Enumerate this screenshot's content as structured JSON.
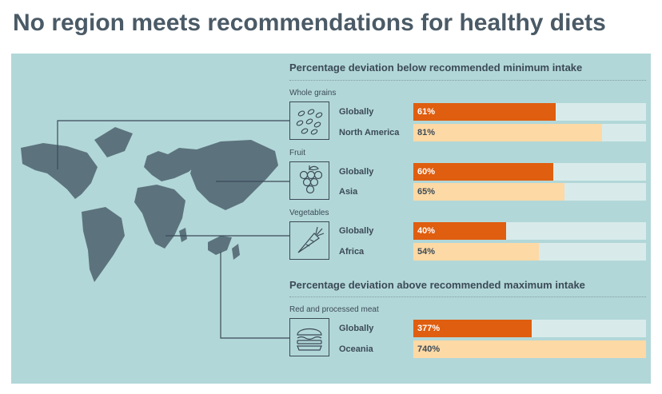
{
  "title": "No region meets recommendations for healthy diets",
  "colors": {
    "panel": "#b2d7d8",
    "global_bar": "#df5e0f",
    "region_bar": "#fdd9a5",
    "track": "#d8ebea",
    "map": "#5c737e",
    "text": "#3b4a57"
  },
  "chart_data": {
    "type": "bar",
    "orientation": "horizontal",
    "xlim": [
      0,
      100
    ],
    "sections": [
      {
        "heading": "Percentage deviation below recommended minimum intake",
        "categories": [
          {
            "label": "Whole grains",
            "icon": "grains-icon",
            "rows": [
              {
                "name": "Globally",
                "value": 61,
                "display": "61%",
                "kind": "global"
              },
              {
                "name": "North America",
                "value": 81,
                "display": "81%",
                "kind": "region"
              }
            ]
          },
          {
            "label": "Fruit",
            "icon": "grapes-icon",
            "rows": [
              {
                "name": "Globally",
                "value": 60,
                "display": "60%",
                "kind": "global"
              },
              {
                "name": "Asia",
                "value": 65,
                "display": "65%",
                "kind": "region"
              }
            ]
          },
          {
            "label": "Vegetables",
            "icon": "carrot-icon",
            "rows": [
              {
                "name": "Globally",
                "value": 40,
                "display": "40%",
                "kind": "global"
              },
              {
                "name": "Africa",
                "value": 54,
                "display": "54%",
                "kind": "region"
              }
            ]
          }
        ]
      },
      {
        "heading": "Percentage deviation above recommended maximum intake",
        "categories": [
          {
            "label": "Red and processed meat",
            "icon": "burger-icon",
            "rows": [
              {
                "name": "Globally",
                "value": 377,
                "bar_fraction": 0.51,
                "display": "377%",
                "kind": "global"
              },
              {
                "name": "Oceania",
                "value": 740,
                "bar_fraction": 1.0,
                "display": "740%",
                "kind": "region"
              }
            ]
          }
        ]
      }
    ]
  }
}
